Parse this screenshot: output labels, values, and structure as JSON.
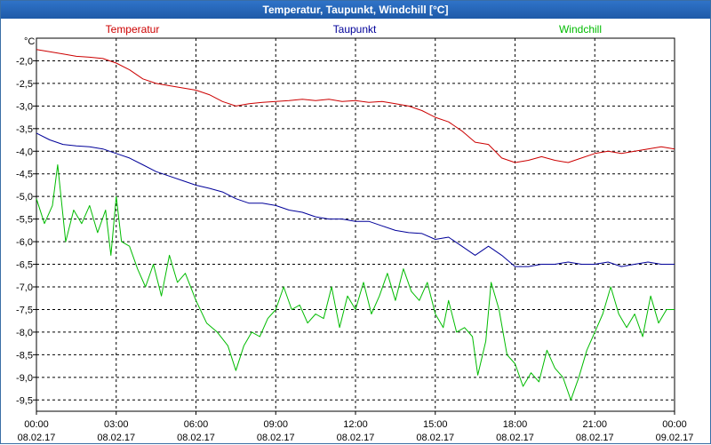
{
  "window": {
    "title": "Temperatur, Taupunkt, Windchill [°C]"
  },
  "chart_data": {
    "type": "line",
    "title": "Temperatur, Taupunkt, Windchill [°C]",
    "ylabel": "°C",
    "xlabel": "",
    "ylim": [
      -9.75,
      -1.5
    ],
    "xlim": [
      0,
      24
    ],
    "grid": true,
    "yticks": [
      -2.0,
      -2.5,
      -3.0,
      -3.5,
      -4.0,
      -4.5,
      -5.0,
      -5.5,
      -6.0,
      -6.5,
      -7.0,
      -7.5,
      -8.0,
      -8.5,
      -9.0,
      -9.5
    ],
    "ytick_labels": [
      "-2,0",
      "-2,5",
      "-3,0",
      "-3,5",
      "-4,0",
      "-4,5",
      "-5,0",
      "-5,5",
      "-6,0",
      "-6,5",
      "-7,0",
      "-7,5",
      "-8,0",
      "-8,5",
      "-9,0",
      "-9,5"
    ],
    "xticks": [
      {
        "x": 0,
        "time": "00:00",
        "date": "08.02.17"
      },
      {
        "x": 3,
        "time": "03:00",
        "date": "08.02.17"
      },
      {
        "x": 6,
        "time": "06:00",
        "date": "08.02.17"
      },
      {
        "x": 9,
        "time": "09:00",
        "date": "08.02.17"
      },
      {
        "x": 12,
        "time": "12:00",
        "date": "08.02.17"
      },
      {
        "x": 15,
        "time": "15:00",
        "date": "08.02.17"
      },
      {
        "x": 18,
        "time": "18:00",
        "date": "08.02.17"
      },
      {
        "x": 21,
        "time": "21:00",
        "date": "08.02.17"
      },
      {
        "x": 24,
        "time": "00:00",
        "date": "09.02.17"
      }
    ],
    "series": [
      {
        "name": "Temperatur",
        "color": "#cc0000",
        "points": [
          [
            0,
            -1.75
          ],
          [
            0.5,
            -1.8
          ],
          [
            1,
            -1.85
          ],
          [
            1.5,
            -1.9
          ],
          [
            2,
            -1.92
          ],
          [
            2.5,
            -1.95
          ],
          [
            3,
            -2.05
          ],
          [
            3.5,
            -2.2
          ],
          [
            4,
            -2.4
          ],
          [
            4.5,
            -2.5
          ],
          [
            5,
            -2.55
          ],
          [
            5.5,
            -2.6
          ],
          [
            6,
            -2.65
          ],
          [
            6.5,
            -2.75
          ],
          [
            7,
            -2.9
          ],
          [
            7.5,
            -3.0
          ],
          [
            8,
            -2.95
          ],
          [
            8.5,
            -2.92
          ],
          [
            9,
            -2.9
          ],
          [
            9.5,
            -2.88
          ],
          [
            10,
            -2.85
          ],
          [
            10.5,
            -2.88
          ],
          [
            11,
            -2.85
          ],
          [
            11.5,
            -2.9
          ],
          [
            12,
            -2.88
          ],
          [
            12.5,
            -2.92
          ],
          [
            13,
            -2.9
          ],
          [
            13.5,
            -2.95
          ],
          [
            14,
            -3.0
          ],
          [
            14.5,
            -3.1
          ],
          [
            15,
            -3.25
          ],
          [
            15.5,
            -3.35
          ],
          [
            16,
            -3.55
          ],
          [
            16.5,
            -3.8
          ],
          [
            17,
            -3.85
          ],
          [
            17.5,
            -4.15
          ],
          [
            18,
            -4.25
          ],
          [
            18.5,
            -4.2
          ],
          [
            19,
            -4.12
          ],
          [
            19.5,
            -4.2
          ],
          [
            20,
            -4.25
          ],
          [
            20.5,
            -4.15
          ],
          [
            21,
            -4.05
          ],
          [
            21.5,
            -4.0
          ],
          [
            22,
            -4.05
          ],
          [
            22.5,
            -4.0
          ],
          [
            23,
            -3.95
          ],
          [
            23.5,
            -3.9
          ],
          [
            24,
            -3.95
          ]
        ]
      },
      {
        "name": "Taupunkt",
        "color": "#000099",
        "points": [
          [
            0,
            -3.6
          ],
          [
            0.5,
            -3.75
          ],
          [
            1,
            -3.85
          ],
          [
            1.5,
            -3.88
          ],
          [
            2,
            -3.9
          ],
          [
            2.5,
            -3.95
          ],
          [
            3,
            -4.05
          ],
          [
            3.5,
            -4.15
          ],
          [
            4,
            -4.3
          ],
          [
            4.5,
            -4.45
          ],
          [
            5,
            -4.55
          ],
          [
            5.5,
            -4.65
          ],
          [
            6,
            -4.75
          ],
          [
            6.5,
            -4.82
          ],
          [
            7,
            -4.9
          ],
          [
            7.5,
            -5.05
          ],
          [
            8,
            -5.15
          ],
          [
            8.5,
            -5.15
          ],
          [
            9,
            -5.2
          ],
          [
            9.5,
            -5.3
          ],
          [
            10,
            -5.35
          ],
          [
            10.5,
            -5.45
          ],
          [
            11,
            -5.5
          ],
          [
            11.5,
            -5.5
          ],
          [
            12,
            -5.55
          ],
          [
            12.5,
            -5.55
          ],
          [
            13,
            -5.65
          ],
          [
            13.5,
            -5.75
          ],
          [
            14,
            -5.8
          ],
          [
            14.5,
            -5.82
          ],
          [
            15,
            -5.95
          ],
          [
            15.5,
            -5.9
          ],
          [
            16,
            -6.1
          ],
          [
            16.5,
            -6.3
          ],
          [
            17,
            -6.1
          ],
          [
            17.5,
            -6.3
          ],
          [
            18,
            -6.55
          ],
          [
            18.5,
            -6.55
          ],
          [
            19,
            -6.5
          ],
          [
            19.5,
            -6.5
          ],
          [
            20,
            -6.45
          ],
          [
            20.5,
            -6.5
          ],
          [
            21,
            -6.5
          ],
          [
            21.5,
            -6.45
          ],
          [
            22,
            -6.55
          ],
          [
            22.5,
            -6.5
          ],
          [
            23,
            -6.45
          ],
          [
            23.5,
            -6.5
          ],
          [
            24,
            -6.5
          ]
        ]
      },
      {
        "name": "Windchill",
        "color": "#00bb00",
        "points": [
          [
            0,
            -5.05
          ],
          [
            0.3,
            -5.6
          ],
          [
            0.6,
            -5.2
          ],
          [
            0.8,
            -4.3
          ],
          [
            1.1,
            -6.0
          ],
          [
            1.4,
            -5.3
          ],
          [
            1.7,
            -5.6
          ],
          [
            2.0,
            -5.2
          ],
          [
            2.3,
            -5.8
          ],
          [
            2.6,
            -5.3
          ],
          [
            2.8,
            -6.3
          ],
          [
            3.0,
            -5.0
          ],
          [
            3.2,
            -6.0
          ],
          [
            3.5,
            -6.1
          ],
          [
            3.8,
            -6.6
          ],
          [
            4.1,
            -7.0
          ],
          [
            4.4,
            -6.5
          ],
          [
            4.7,
            -7.2
          ],
          [
            5.0,
            -6.3
          ],
          [
            5.3,
            -6.9
          ],
          [
            5.6,
            -6.7
          ],
          [
            6.0,
            -7.3
          ],
          [
            6.4,
            -7.8
          ],
          [
            6.8,
            -8.0
          ],
          [
            7.2,
            -8.3
          ],
          [
            7.5,
            -8.85
          ],
          [
            7.8,
            -8.3
          ],
          [
            8.1,
            -8.0
          ],
          [
            8.4,
            -8.1
          ],
          [
            8.7,
            -7.7
          ],
          [
            9.0,
            -7.5
          ],
          [
            9.3,
            -7.0
          ],
          [
            9.6,
            -7.5
          ],
          [
            9.9,
            -7.4
          ],
          [
            10.2,
            -7.8
          ],
          [
            10.5,
            -7.6
          ],
          [
            10.8,
            -7.7
          ],
          [
            11.1,
            -7.0
          ],
          [
            11.4,
            -7.9
          ],
          [
            11.7,
            -7.2
          ],
          [
            12.0,
            -7.5
          ],
          [
            12.3,
            -6.9
          ],
          [
            12.6,
            -7.6
          ],
          [
            12.9,
            -7.2
          ],
          [
            13.2,
            -6.7
          ],
          [
            13.5,
            -7.3
          ],
          [
            13.8,
            -6.6
          ],
          [
            14.1,
            -7.1
          ],
          [
            14.4,
            -7.3
          ],
          [
            14.7,
            -6.9
          ],
          [
            15.0,
            -7.6
          ],
          [
            15.3,
            -7.9
          ],
          [
            15.5,
            -7.3
          ],
          [
            15.8,
            -8.0
          ],
          [
            16.1,
            -7.9
          ],
          [
            16.4,
            -8.1
          ],
          [
            16.6,
            -8.95
          ],
          [
            16.9,
            -8.2
          ],
          [
            17.1,
            -6.9
          ],
          [
            17.4,
            -7.5
          ],
          [
            17.7,
            -8.5
          ],
          [
            18.0,
            -8.7
          ],
          [
            18.3,
            -9.2
          ],
          [
            18.6,
            -8.9
          ],
          [
            18.9,
            -9.1
          ],
          [
            19.2,
            -8.4
          ],
          [
            19.5,
            -8.8
          ],
          [
            19.8,
            -9.0
          ],
          [
            20.1,
            -9.5
          ],
          [
            20.4,
            -9.0
          ],
          [
            20.7,
            -8.4
          ],
          [
            21.0,
            -8.0
          ],
          [
            21.3,
            -7.6
          ],
          [
            21.6,
            -7.0
          ],
          [
            21.9,
            -7.6
          ],
          [
            22.2,
            -7.9
          ],
          [
            22.5,
            -7.6
          ],
          [
            22.8,
            -8.1
          ],
          [
            23.1,
            -7.2
          ],
          [
            23.4,
            -7.8
          ],
          [
            23.7,
            -7.5
          ],
          [
            24,
            -7.5
          ]
        ]
      }
    ]
  }
}
